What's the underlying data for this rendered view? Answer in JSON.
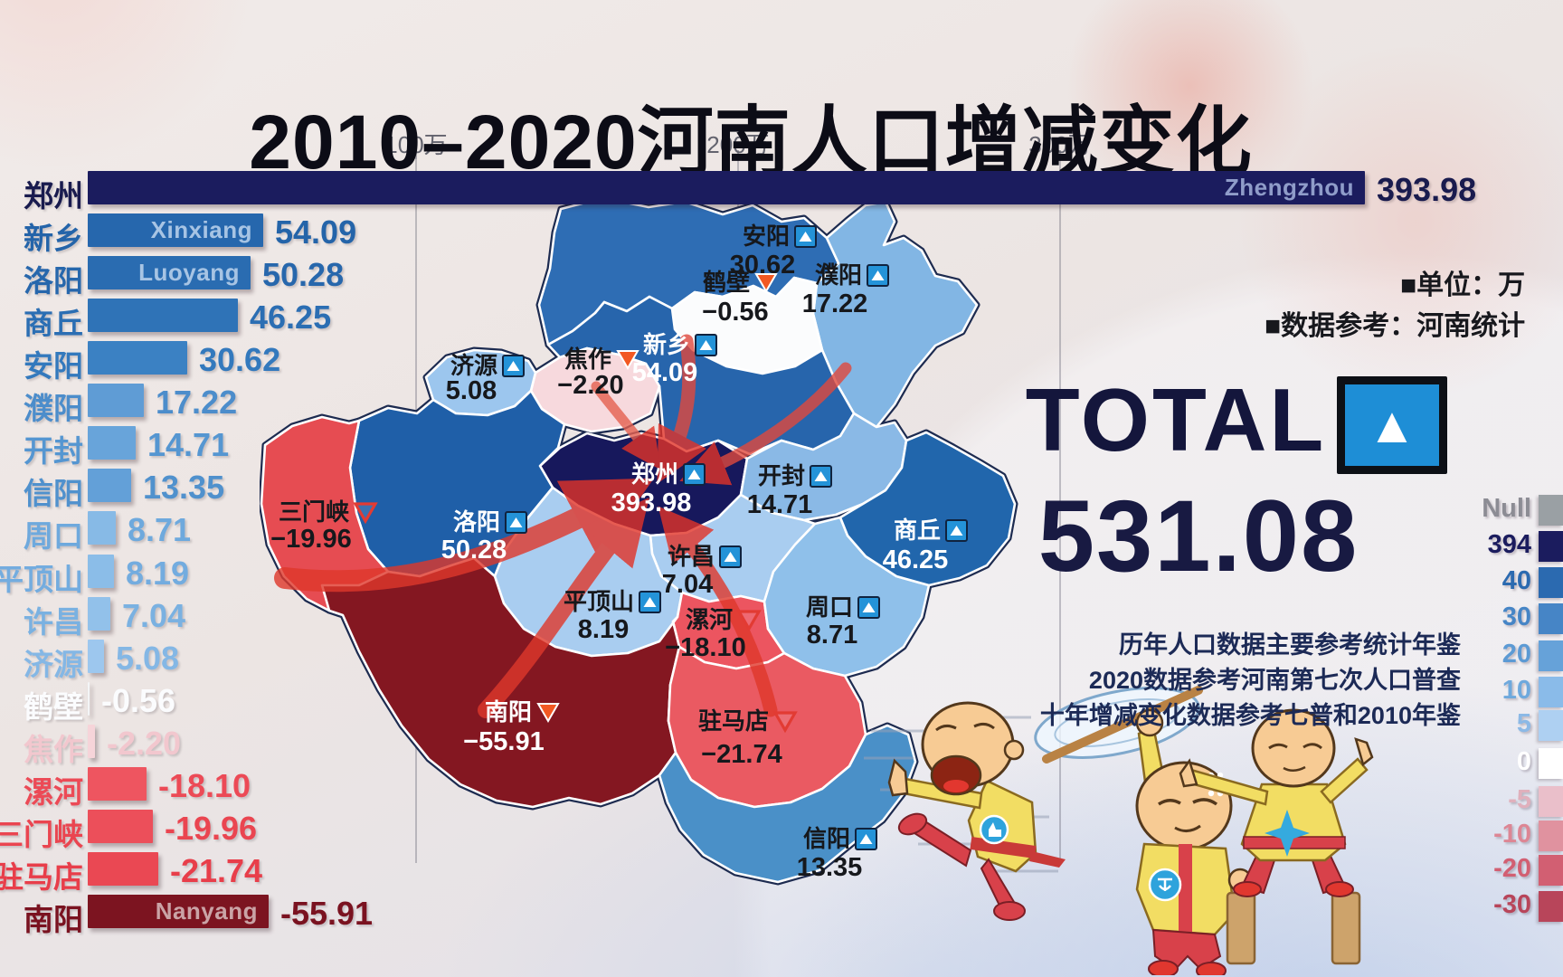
{
  "title": "2010–2020河南人口增减变化",
  "axis": {
    "ticks": [
      "100万",
      "200万",
      "300万"
    ]
  },
  "side_notes": {
    "unit": "■单位：万",
    "source": "■数据参考：河南统计"
  },
  "total": {
    "label": "TOTAL",
    "value": "531.08",
    "icon": "up-triangle"
  },
  "footnotes": [
    "历年人口数据主要参考统计年鉴",
    "2020数据参考河南第七次人口普查",
    "十年增减变化数据参考七普和2010年鉴"
  ],
  "legend": {
    "items": [
      {
        "label": "Null",
        "swatch": "#9aa0a4",
        "text": "#8c8c94"
      },
      {
        "label": "394",
        "swatch": "#1b1c5e",
        "text": "#1b1c5e"
      },
      {
        "label": "40",
        "swatch": "#2b6ab0",
        "text": "#2b6ab0"
      },
      {
        "label": "30",
        "swatch": "#4685c6",
        "text": "#4685c6"
      },
      {
        "label": "20",
        "swatch": "#66a2d9",
        "text": "#5c9ad4"
      },
      {
        "label": "10",
        "swatch": "#8abbe9",
        "text": "#6ea9dd"
      },
      {
        "label": "5",
        "swatch": "#aed0f2",
        "text": "#8cb9e6"
      },
      {
        "label": "0",
        "swatch": "#ffffff",
        "text": "#ffffff"
      },
      {
        "label": "-5",
        "swatch": "#eabfca",
        "text": "#e0b0bc"
      },
      {
        "label": "-10",
        "swatch": "#e0929f",
        "text": "#dd8694"
      },
      {
        "label": "-20",
        "swatch": "#d25f72",
        "text": "#d25f72"
      },
      {
        "label": "-30",
        "swatch": "#b8455a",
        "text": "#b8455a"
      }
    ]
  },
  "chart_data": {
    "type": "bar",
    "orientation": "horizontal",
    "title": "2010–2020河南人口增减变化",
    "unit": "万",
    "categories": [
      "郑州",
      "新乡",
      "洛阳",
      "商丘",
      "安阳",
      "濮阳",
      "开封",
      "信阳",
      "周口",
      "平顶山",
      "许昌",
      "济源",
      "鹤壁",
      "焦作",
      "漯河",
      "三门峡",
      "驻马店",
      "南阳"
    ],
    "values": [
      393.98,
      54.09,
      50.28,
      46.25,
      30.62,
      17.22,
      14.71,
      13.35,
      8.71,
      8.19,
      7.04,
      5.08,
      -0.56,
      -2.2,
      -18.1,
      -19.96,
      -21.74,
      -55.91
    ],
    "x_ticks": [
      "100万",
      "200万",
      "300万"
    ],
    "x_tick_values": [
      100,
      200,
      300
    ],
    "total": 531.08,
    "legend_position": "right",
    "legend_scale": [
      "Null",
      "394",
      "40",
      "30",
      "20",
      "10",
      "5",
      "0",
      "-5",
      "-10",
      "-20",
      "-30"
    ]
  },
  "bars": [
    {
      "name": "郑州",
      "display": "393.98",
      "color": "#1b1c5e",
      "text": "#191b4e",
      "inner": "Zhengzhou",
      "inner_color": "#8f9cc9"
    },
    {
      "name": "新乡",
      "display": "54.09",
      "color": "#2667ad",
      "text": "#2464a9",
      "inner": "Xinxiang",
      "inner_color": "#a7c4e4"
    },
    {
      "name": "洛阳",
      "display": "50.28",
      "color": "#2a6cb1",
      "text": "#2767ac",
      "inner": "Luoyang",
      "inner_color": "#a7c4e4"
    },
    {
      "name": "商丘",
      "display": "46.25",
      "color": "#2f73b7",
      "text": "#2b6eb3",
      "inner": null,
      "inner_color": null
    },
    {
      "name": "安阳",
      "display": "30.62",
      "color": "#3b81c3",
      "text": "#3379bd",
      "inner": null,
      "inner_color": null
    },
    {
      "name": "濮阳",
      "display": "17.22",
      "color": "#5f9cd5",
      "text": "#4c8dcb",
      "inner": null,
      "inner_color": null
    },
    {
      "name": "开封",
      "display": "14.71",
      "color": "#68a4da",
      "text": "#5596d1",
      "inner": null,
      "inner_color": null
    },
    {
      "name": "信阳",
      "display": "13.35",
      "color": "#63a0d8",
      "text": "#5091cd",
      "inner": null,
      "inner_color": null
    },
    {
      "name": "周口",
      "display": "8.71",
      "color": "#87bae6",
      "text": "#6ea9dd",
      "inner": null,
      "inner_color": null
    },
    {
      "name": "平顶山",
      "display": "8.19",
      "color": "#8bbde8",
      "text": "#73acdf",
      "inner": null,
      "inner_color": null
    },
    {
      "name": "许昌",
      "display": "7.04",
      "color": "#92c1ea",
      "text": "#7ab1e1",
      "inner": null,
      "inner_color": null
    },
    {
      "name": "济源",
      "display": "5.08",
      "color": "#9dc7ee",
      "text": "#84b7e5",
      "inner": null,
      "inner_color": null
    },
    {
      "name": "鹤壁",
      "display": "-0.56",
      "color": "#f3f5f7",
      "text": "#fbfcfe",
      "inner": null,
      "inner_color": null
    },
    {
      "name": "焦作",
      "display": "-2.20",
      "color": "#f6d4d9",
      "text": "#f2c7ce",
      "inner": null,
      "inner_color": null
    },
    {
      "name": "漯河",
      "display": "-18.10",
      "color": "#ee5560",
      "text": "#ec4a56",
      "inner": null,
      "inner_color": null
    },
    {
      "name": "三门峡",
      "display": "-19.96",
      "color": "#ec4f5a",
      "text": "#ea4550",
      "inner": null,
      "inner_color": null
    },
    {
      "name": "驻马店",
      "display": "-21.74",
      "color": "#ea4853",
      "text": "#e83e4a",
      "inner": null,
      "inner_color": null
    },
    {
      "name": "南阳",
      "display": "-55.91",
      "color": "#7c1420",
      "text": "#7a1220",
      "inner": "Nanyang",
      "inner_color": "#caa3a6"
    }
  ],
  "map": {
    "regions": [
      {
        "id": "anyang",
        "name": "安阳",
        "display": "30.62",
        "marker": "up",
        "text": "#16181c"
      },
      {
        "id": "puyang",
        "name": "濮阳",
        "display": "17.22",
        "marker": "up",
        "text": "#16181c"
      },
      {
        "id": "hebi",
        "name": "鹤壁",
        "display": "−0.56",
        "marker": "down-filled",
        "text": "#16181c"
      },
      {
        "id": "xinxiang",
        "name": "新乡",
        "display": "54.09",
        "marker": "up",
        "text": "#ffffff"
      },
      {
        "id": "jiaozuo",
        "name": "焦作",
        "display": "−2.20",
        "marker": "down-filled",
        "text": "#16181c"
      },
      {
        "id": "jiyuan",
        "name": "济源",
        "display": "5.08",
        "marker": "up",
        "text": "#16181c"
      },
      {
        "id": "zhengzhou",
        "name": "郑州",
        "display": "393.98",
        "marker": "up",
        "text": "#ffffff"
      },
      {
        "id": "kaifeng",
        "name": "开封",
        "display": "14.71",
        "marker": "up",
        "text": "#16181c"
      },
      {
        "id": "luoyang",
        "name": "洛阳",
        "display": "50.28",
        "marker": "up",
        "text": "#ffffff"
      },
      {
        "id": "sanmenxia",
        "name": "三门峡",
        "display": "−19.96",
        "marker": "down-outline",
        "text": "#16181c"
      },
      {
        "id": "xuchang",
        "name": "许昌",
        "display": "7.04",
        "marker": "up",
        "text": "#16181c"
      },
      {
        "id": "pingdingshan",
        "name": "平顶山",
        "display": "8.19",
        "marker": "up",
        "text": "#16181c"
      },
      {
        "id": "luohe",
        "name": "漯河",
        "display": "−18.10",
        "marker": "down-outline",
        "text": "#16181c"
      },
      {
        "id": "zhoukou",
        "name": "周口",
        "display": "8.71",
        "marker": "up",
        "text": "#16181c"
      },
      {
        "id": "shangqiu",
        "name": "商丘",
        "display": "46.25",
        "marker": "up",
        "text": "#ffffff"
      },
      {
        "id": "nanyang",
        "name": "南阳",
        "display": "−55.91",
        "marker": "down-filled",
        "text": "#ffffff"
      },
      {
        "id": "zhumadian",
        "name": "驻马店",
        "display": "−21.74",
        "marker": "down-outline",
        "text": "#16181c"
      },
      {
        "id": "xinyang",
        "name": "信阳",
        "display": "13.35",
        "marker": "up",
        "text": "#16181c"
      }
    ]
  }
}
